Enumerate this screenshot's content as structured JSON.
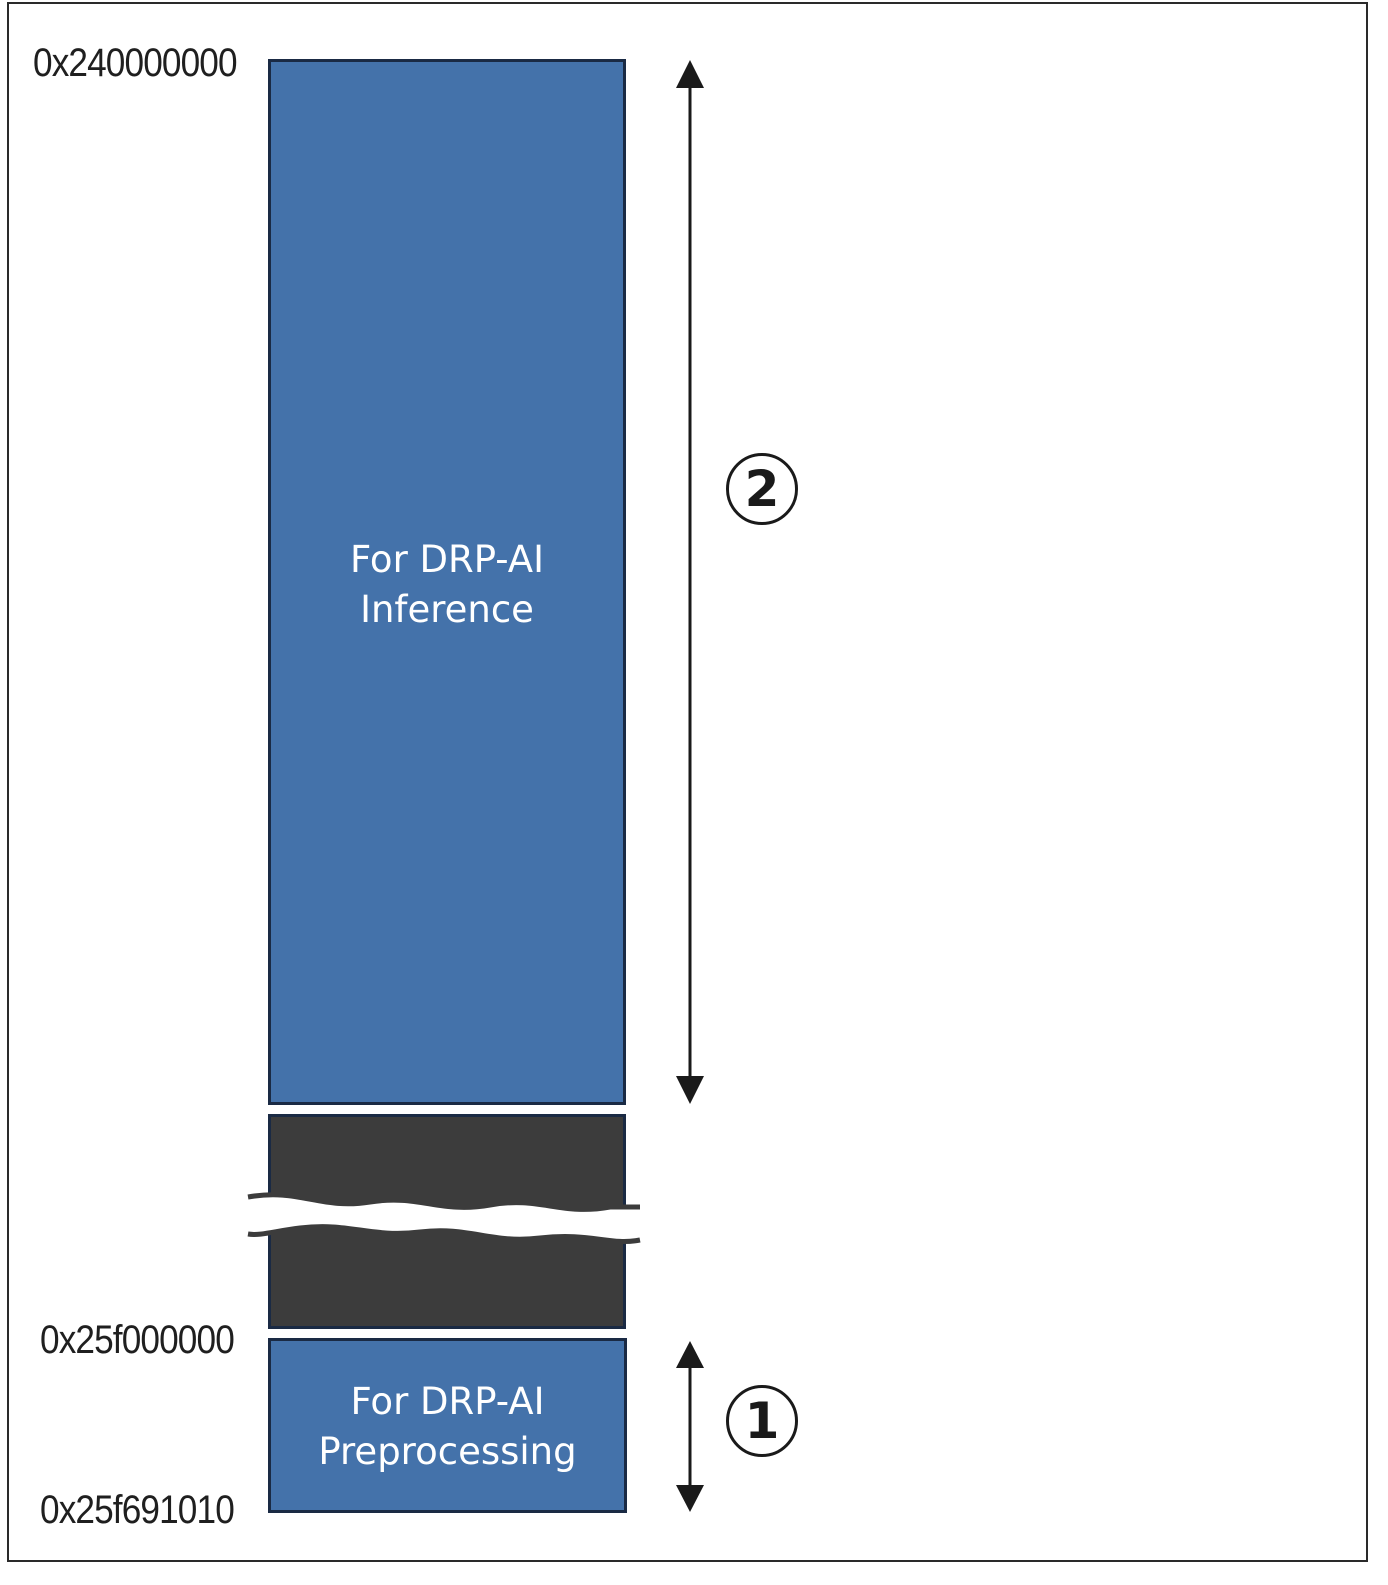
{
  "addresses": {
    "top": "0x240000000",
    "middle": "0x25f000000",
    "bottom": "0x25f691010"
  },
  "regions": {
    "inference": {
      "line1": "For DRP-AI",
      "line2": "Inference",
      "marker": "2"
    },
    "preprocessing": {
      "line1": "For DRP-AI",
      "line2": "Preprocessing",
      "marker": "1"
    }
  },
  "colors": {
    "region_fill": "#4472aa",
    "gap_fill": "#3c3c3c",
    "border": "#1a2a44"
  },
  "icons": {
    "break": "wavy-break-icon",
    "span_arrow": "double-arrow-icon"
  }
}
